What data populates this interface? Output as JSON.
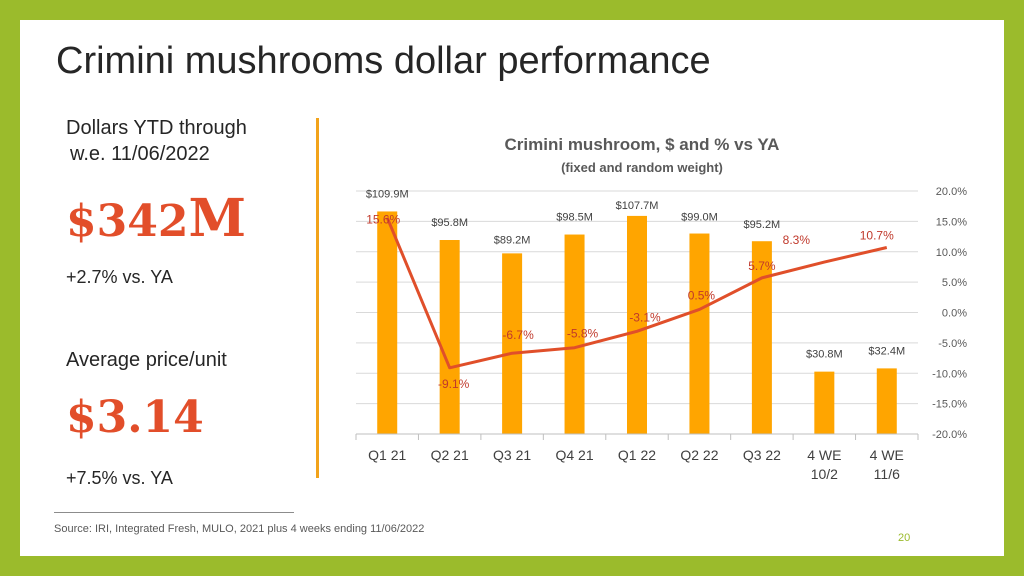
{
  "slide": {
    "title": "Crimini mushrooms dollar performance",
    "page_number": "20",
    "source": "Source: IRI, Integrated Fresh, MULO, 2021 plus 4 weeks ending 11/06/2022"
  },
  "kpis": {
    "dollars_label_line1": "Dollars YTD through",
    "dollars_label_line2": "w.e. 11/06/2022",
    "dollars_value": "$342",
    "dollars_unit": "M",
    "dollars_change": "+2.7% vs. YA",
    "price_label": "Average price/unit",
    "price_value": "$3.14",
    "price_change": "+7.5% vs. YA"
  },
  "colors": {
    "bar": "#ffa500",
    "line": "#e04f2a",
    "accent": "#e24e2a",
    "frame": "#9bbb2c"
  },
  "chart_data": {
    "type": "bar",
    "title": "Crimini mushroom, $ and % vs YA",
    "subtitle": "(fixed and random weight)",
    "categories": [
      "Q1 21",
      "Q2 21",
      "Q3 21",
      "Q4 21",
      "Q1 22",
      "Q2 22",
      "Q3 22",
      "4 WE 10/2",
      "4 WE 11/6"
    ],
    "category_lines": [
      [
        "Q1 21"
      ],
      [
        "Q2 21"
      ],
      [
        "Q3 21"
      ],
      [
        "Q4 21"
      ],
      [
        "Q1 22"
      ],
      [
        "Q2 22"
      ],
      [
        "Q3 22"
      ],
      [
        "4 WE",
        "10/2"
      ],
      [
        "4 WE",
        "11/6"
      ]
    ],
    "series": [
      {
        "name": "Dollars ($M)",
        "type": "bar",
        "axis": "left",
        "values": [
          109.9,
          95.8,
          89.2,
          98.5,
          107.7,
          99.0,
          95.2,
          30.8,
          32.4
        ],
        "labels": [
          "$109.9M",
          "$95.8M",
          "$89.2M",
          "$98.5M",
          "$107.7M",
          "$99.0M",
          "$95.2M",
          "$30.8M",
          "$32.4M"
        ]
      },
      {
        "name": "% vs YA",
        "type": "line",
        "axis": "right",
        "values": [
          15.6,
          -9.1,
          -6.7,
          -5.8,
          -3.1,
          0.5,
          5.7,
          8.3,
          10.7
        ],
        "labels": [
          "15.6%",
          "-9.1%",
          "-6.7%",
          "-5.8%",
          "-3.1%",
          "0.5%",
          "5.7%",
          "8.3%",
          "10.7%"
        ]
      }
    ],
    "left_ylim": [
      0,
      120
    ],
    "right_ylim": [
      -20,
      20
    ],
    "right_ticks": [
      "20.0%",
      "15.0%",
      "10.0%",
      "5.0%",
      "0.0%",
      "-5.0%",
      "-10.0%",
      "-15.0%",
      "-20.0%"
    ],
    "grid": true
  }
}
